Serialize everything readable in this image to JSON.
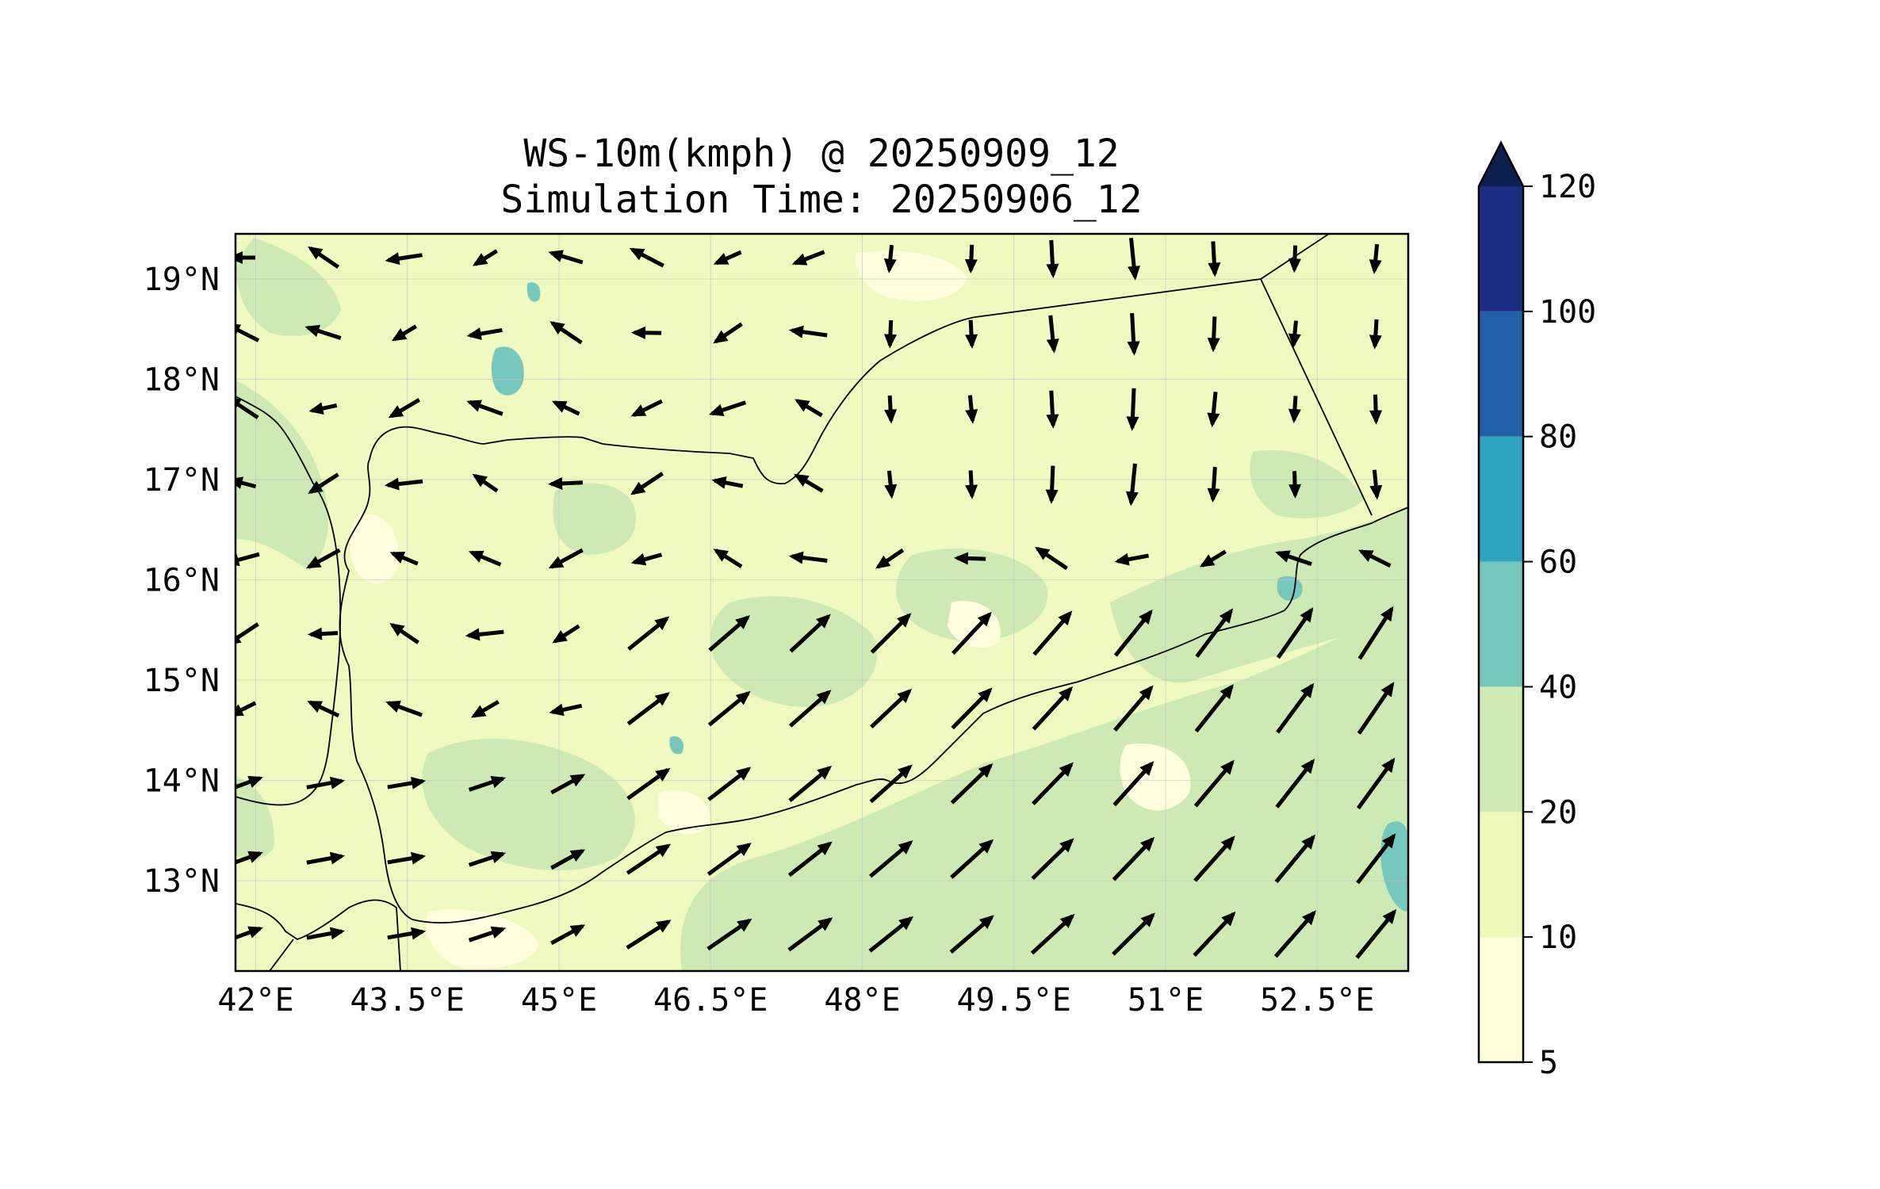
{
  "title": {
    "line1": "WS-10m(kmph) @ 20250909_12",
    "line2": "Simulation Time: 20250906_12"
  },
  "map": {
    "lon_range": [
      41.8,
      53.4
    ],
    "lat_range": [
      12.1,
      19.45
    ],
    "gridlines": true,
    "lon_ticks": [
      "42°E",
      "43.5°E",
      "45°E",
      "46.5°E",
      "48°E",
      "49.5°E",
      "51°E",
      "52.5°E"
    ],
    "lon_tick_values": [
      42.0,
      43.5,
      45.0,
      46.5,
      48.0,
      49.5,
      51.0,
      52.5
    ],
    "lat_ticks": [
      "13°N",
      "14°N",
      "15°N",
      "16°N",
      "17°N",
      "18°N",
      "19°N"
    ],
    "lat_tick_values": [
      13,
      14,
      15,
      16,
      17,
      18,
      19
    ],
    "field_colors": {
      "land_base": "#f0f9c0",
      "light": "#ffffe0",
      "moderate": "#cdeab4",
      "high": "#76c7be"
    },
    "coastline_color": "#000000",
    "arrow_color": "#000000"
  },
  "colorbar": {
    "levels": [
      "5",
      "10",
      "20",
      "40",
      "60",
      "80",
      "100",
      "120"
    ],
    "colors": [
      "#ffffd9",
      "#eef8b8",
      "#cdebb3",
      "#76c8bd",
      "#2ea4c0",
      "#2260a9",
      "#1c2c80"
    ],
    "extend_color": "#0d1f4e",
    "extend": "max"
  }
}
